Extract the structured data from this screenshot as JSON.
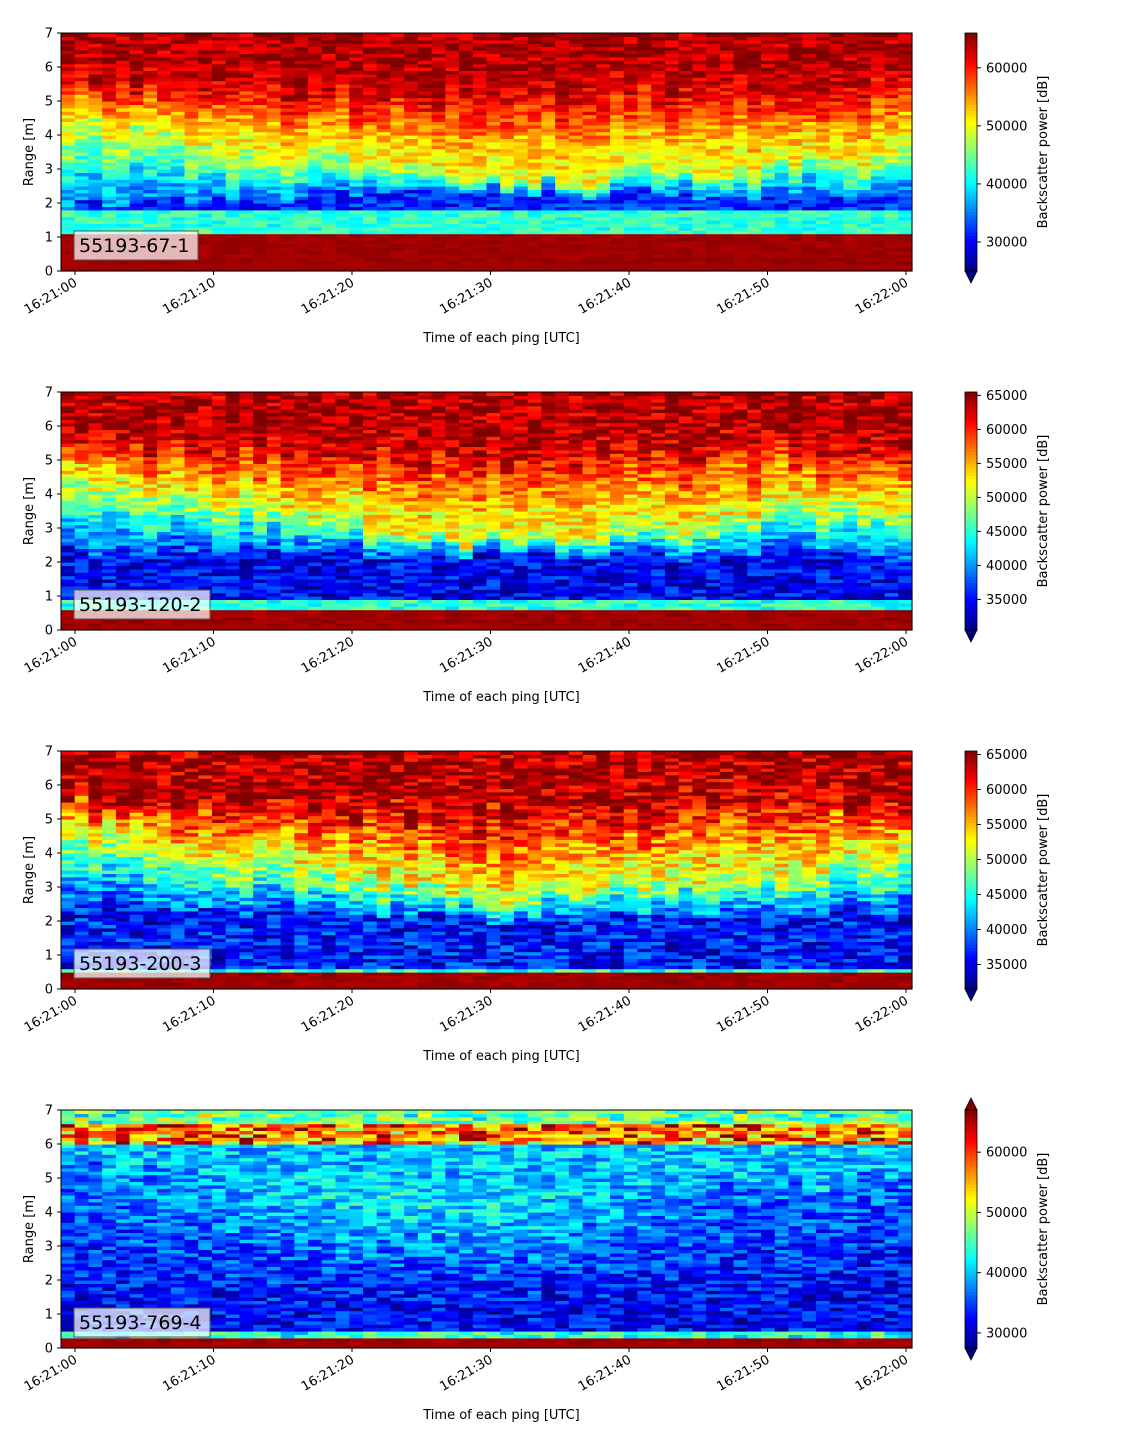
{
  "chart_data": [
    {
      "type": "heatmap",
      "label_box": "55193-67-1",
      "xlabel": "Time of each ping [UTC]",
      "ylabel": "Range [m]",
      "x_range": [
        "16:21:00",
        "16:22:00"
      ],
      "x_ticks": [
        "16:21:00",
        "16:21:10",
        "16:21:20",
        "16:21:30",
        "16:21:40",
        "16:21:50",
        "16:22:00"
      ],
      "ylim": [
        0,
        7
      ],
      "y_ticks": [
        "0",
        "1",
        "2",
        "3",
        "4",
        "5",
        "6",
        "7"
      ],
      "colorbar": {
        "label": "Backscatter power [dB]",
        "range": [
          25000,
          66000
        ],
        "ticks": [
          30000,
          40000,
          50000,
          60000
        ],
        "tick_labels": [
          "30000",
          "40000",
          "50000",
          "60000"
        ],
        "extend": "min",
        "colormap": "jet"
      },
      "profile": {
        "band_bottom": [
          0.25,
          0.25
        ],
        "band_top": [
          1.15,
          1.15
        ],
        "cyan_top": [
          1.85,
          1.85
        ],
        "front_start": [
          2.0,
          4.3
        ],
        "front_mid": [
          2.3,
          2.6
        ],
        "front_end": [
          2.2,
          3.4
        ],
        "front_start_sharp": 0.6,
        "lower_level": 0.16,
        "noise": 0.09
      }
    },
    {
      "type": "heatmap",
      "label_box": "55193-120-2",
      "xlabel": "Time of each ping [UTC]",
      "ylabel": "Range [m]",
      "x_range": [
        "16:21:00",
        "16:22:00"
      ],
      "x_ticks": [
        "16:21:00",
        "16:21:10",
        "16:21:20",
        "16:21:30",
        "16:21:40",
        "16:21:50",
        "16:22:00"
      ],
      "ylim": [
        0,
        7
      ],
      "y_ticks": [
        "0",
        "1",
        "2",
        "3",
        "4",
        "5",
        "6",
        "7"
      ],
      "colorbar": {
        "label": "Backscatter power [dB]",
        "range": [
          30500,
          65500
        ],
        "ticks": [
          35000,
          40000,
          45000,
          50000,
          55000,
          60000,
          65000
        ],
        "tick_labels": [
          "35000",
          "40000",
          "45000",
          "50000",
          "55000",
          "60000",
          "65000"
        ],
        "extend": "min",
        "colormap": "jet"
      },
      "profile": {
        "band_bottom": [
          0.1,
          0.1
        ],
        "band_top": [
          0.6,
          0.6
        ],
        "cyan_top": [
          0.9,
          0.9
        ],
        "front_start": [
          2.4,
          4.5
        ],
        "front_mid": [
          2.2,
          2.6
        ],
        "front_end": [
          2.2,
          3.8
        ],
        "front_start_sharp": 0.9,
        "lower_level": 0.12,
        "noise": 0.11
      }
    },
    {
      "type": "heatmap",
      "label_box": "55193-200-3",
      "xlabel": "Time of each ping [UTC]",
      "ylabel": "Range [m]",
      "x_range": [
        "16:21:00",
        "16:22:00"
      ],
      "x_ticks": [
        "16:21:00",
        "16:21:10",
        "16:21:20",
        "16:21:30",
        "16:21:40",
        "16:21:50",
        "16:22:00"
      ],
      "ylim": [
        0,
        7
      ],
      "y_ticks": [
        "0",
        "1",
        "2",
        "3",
        "4",
        "5",
        "6",
        "7"
      ],
      "colorbar": {
        "label": "Backscatter power [dB]",
        "range": [
          31500,
          65500
        ],
        "ticks": [
          35000,
          40000,
          45000,
          50000,
          55000,
          60000,
          65000
        ],
        "tick_labels": [
          "35000",
          "40000",
          "45000",
          "50000",
          "55000",
          "60000",
          "65000"
        ],
        "extend": "min",
        "colormap": "jet"
      },
      "profile": {
        "band_bottom": [
          0.1,
          0.1
        ],
        "band_top": [
          0.45,
          0.45
        ],
        "cyan_top": [
          0.6,
          0.6
        ],
        "front_start": [
          2.6,
          4.6
        ],
        "front_mid": [
          2.0,
          2.6
        ],
        "front_end": [
          2.4,
          4.0
        ],
        "front_start_sharp": 1.1,
        "lower_level": 0.14,
        "noise": 0.13
      }
    },
    {
      "type": "heatmap",
      "label_box": "55193-769-4",
      "xlabel": "Time of each ping [UTC]",
      "ylabel": "Range [m]",
      "x_range": [
        "16:21:00",
        "16:22:00"
      ],
      "x_ticks": [
        "16:21:00",
        "16:21:10",
        "16:21:20",
        "16:21:30",
        "16:21:40",
        "16:21:50",
        "16:22:00"
      ],
      "ylim": [
        0,
        7
      ],
      "y_ticks": [
        "0",
        "1",
        "2",
        "3",
        "4",
        "5",
        "6",
        "7"
      ],
      "colorbar": {
        "label": "Backscatter power [dB]",
        "range": [
          27500,
          67000
        ],
        "ticks": [
          30000,
          40000,
          50000,
          60000
        ],
        "tick_labels": [
          "30000",
          "40000",
          "50000",
          "60000"
        ],
        "extend": "both",
        "colormap": "jet"
      },
      "profile": {
        "band_bottom": [
          0.15,
          0.15
        ],
        "band_top": [
          0.35,
          0.35
        ],
        "cyan_top": [
          0.45,
          0.45
        ],
        "surface_layer": [
          6.0,
          6.6
        ],
        "front_start": [
          0.9,
          5.5
        ],
        "front_mid": [
          0.9,
          4.5
        ],
        "front_end": [
          1.0,
          5.0
        ],
        "front_start_sharp": 0.0,
        "lower_level": 0.12,
        "noise": 0.12,
        "weak": true
      }
    }
  ]
}
